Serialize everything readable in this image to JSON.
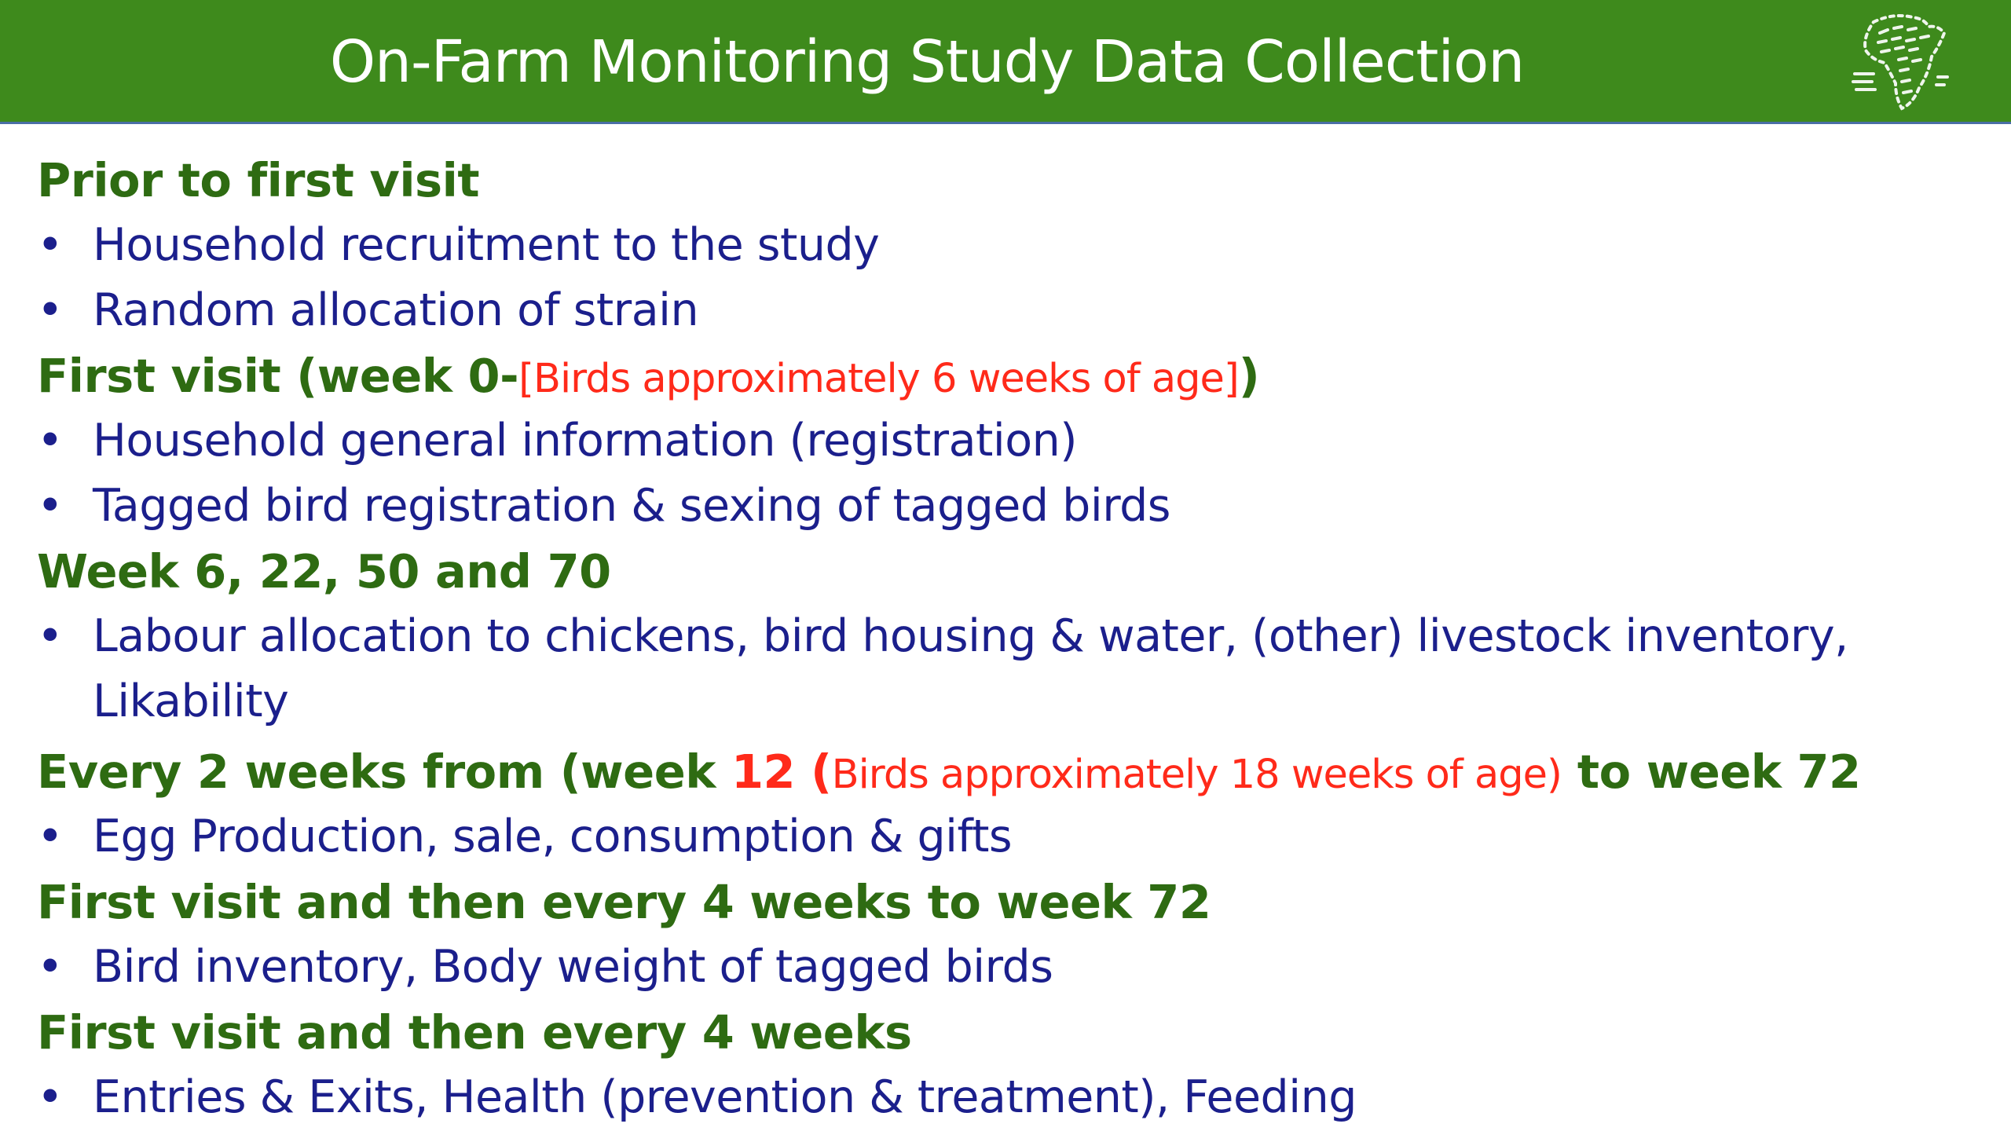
{
  "title": "On-Farm Monitoring Study Data Collection",
  "logo": {
    "icon": "africa-map-logo-icon"
  },
  "colors": {
    "title_bar": "#3e8a1c",
    "heading": "#2e6b12",
    "bullet_text": "#1b1f8c",
    "highlight": "#ff2a1a"
  },
  "bullet_symbol": "•",
  "sections": [
    {
      "heading": "Prior to first visit",
      "items": [
        "Household recruitment to the study",
        "Random allocation of strain"
      ]
    },
    {
      "heading_parts": [
        "First visit (week 0-",
        "[Birds approximately 6 weeks of age]",
        ")"
      ],
      "items": [
        "Household general information (registration)",
        "Tagged bird registration & sexing of tagged birds"
      ]
    },
    {
      "heading": "Week 6, 22, 50 and 70",
      "items": [
        "Labour allocation to chickens, bird housing & water, (other) livestock inventory, Likability"
      ]
    },
    {
      "heading_parts": [
        "Every 2 weeks from (week ",
        "12",
        " (",
        "Birds approximately 18 weeks of age)",
        " to week 72"
      ],
      "items": [
        "Egg Production, sale, consumption & gifts"
      ]
    },
    {
      "heading": "First visit and then every 4 weeks to week 72",
      "items": [
        "Bird inventory, Body weight of tagged birds"
      ]
    },
    {
      "heading": "First visit and then every 4 weeks",
      "items": [
        "Entries & Exits, Health (prevention & treatment), Feeding"
      ]
    }
  ]
}
